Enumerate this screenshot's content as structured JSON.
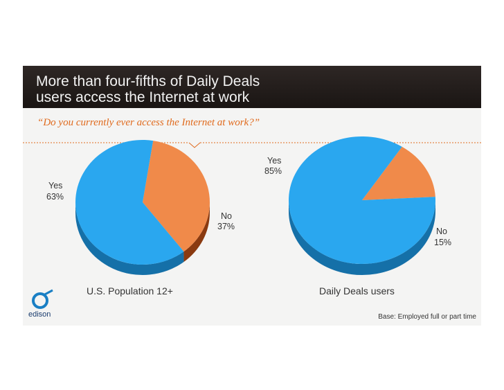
{
  "title_lines": [
    "More than four-fifths of Daily Deals",
    "users access the Internet at work"
  ],
  "question": "“Do you currently ever access the Internet at work?”",
  "base_note": "Base: Employed full or part time",
  "logo_text": "edison",
  "colors": {
    "yes": "#2aa7ef",
    "no": "#f08a4a",
    "accent": "#e06a1d",
    "header": "#221c1a"
  },
  "chart_data": [
    {
      "type": "pie",
      "title": "U.S. Population 12+",
      "slices": [
        {
          "label": "Yes",
          "value": 63,
          "display": "63%"
        },
        {
          "label": "No",
          "value": 37,
          "display": "37%"
        }
      ]
    },
    {
      "type": "pie",
      "title": "Daily Deals users",
      "slices": [
        {
          "label": "Yes",
          "value": 85,
          "display": "85%"
        },
        {
          "label": "No",
          "value": 15,
          "display": "15%"
        }
      ]
    }
  ]
}
